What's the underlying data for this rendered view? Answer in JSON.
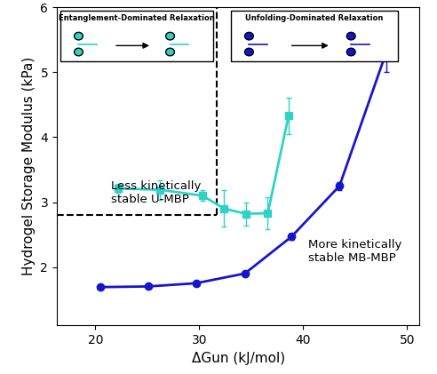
{
  "chart_data": {
    "type": "line",
    "x_label": "ΔGun (kJ/mol)",
    "y_label": "Hydrogel Storage Modulus (kPa)",
    "xlim": [
      16.3,
      51.2
    ],
    "xticks": [
      20,
      30,
      40,
      50
    ],
    "ylim": [
      1.1,
      6.0
    ],
    "yticks": [
      2,
      3,
      4,
      5,
      6
    ],
    "grid": false,
    "annotations": [
      {
        "text": "Less kinetically\nstable U-MBP",
        "x": 21.5,
        "y": 2.95
      },
      {
        "text": "More kinetically\nstable MB-MBP",
        "x": 40.5,
        "y": 2.05
      }
    ],
    "region_boundary": {
      "x": 31.7,
      "y": 2.8
    },
    "panels": [
      "Entanglement-Dominated Relaxation",
      "Unfolding-Dominated Relaxation"
    ],
    "series": [
      {
        "name": "U-MBP",
        "color": "#2ed3c6",
        "marker": "square",
        "line_style": "solid",
        "x": [
          22.2,
          26.2,
          30.3,
          32.4,
          34.5,
          36.6,
          38.6
        ],
        "values": [
          3.21,
          3.19,
          3.1,
          2.9,
          2.82,
          2.83,
          4.33
        ],
        "errors": [
          0.07,
          0.15,
          0.08,
          0.28,
          0.18,
          0.25,
          0.28
        ]
      },
      {
        "name": "MB-MBP",
        "color": "#1515d0",
        "marker": "circle",
        "line_style": "solid",
        "x": [
          20.5,
          25.1,
          29.7,
          34.4,
          38.9,
          43.5,
          48.0
        ],
        "values": [
          1.69,
          1.7,
          1.75,
          1.9,
          2.47,
          3.25,
          5.31
        ],
        "errors": [
          0.03,
          0.02,
          0.03,
          0.03,
          0.05,
          0.06,
          0.3
        ]
      }
    ]
  }
}
